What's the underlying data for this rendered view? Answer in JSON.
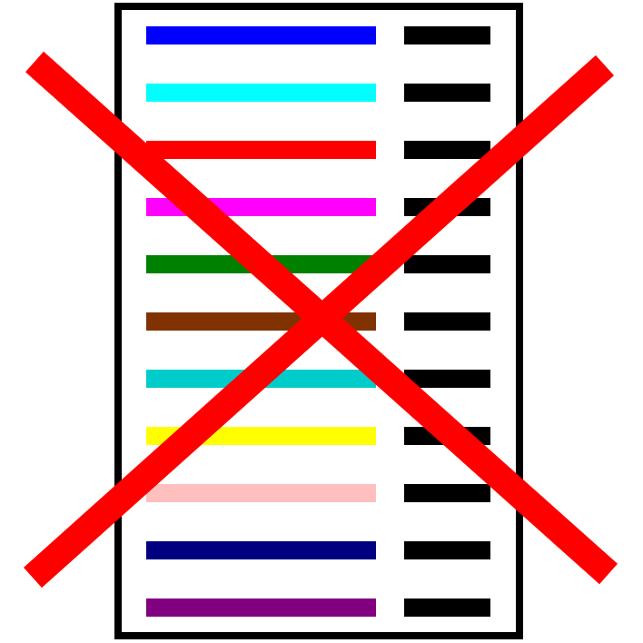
{
  "icon": {
    "name": "disabled-legend-icon",
    "frame_color": "#000000",
    "background_color": "#ffffff",
    "cross_color": "#ff0000",
    "rows": [
      {
        "swatch_color": "#0000ff",
        "marker_color": "#000000"
      },
      {
        "swatch_color": "#00ffff",
        "marker_color": "#000000"
      },
      {
        "swatch_color": "#ff0000",
        "marker_color": "#000000"
      },
      {
        "swatch_color": "#ff00ff",
        "marker_color": "#000000"
      },
      {
        "swatch_color": "#008000",
        "marker_color": "#000000"
      },
      {
        "swatch_color": "#803300",
        "marker_color": "#000000"
      },
      {
        "swatch_color": "#00cccc",
        "marker_color": "#000000"
      },
      {
        "swatch_color": "#ffff00",
        "marker_color": "#000000"
      },
      {
        "swatch_color": "#ffbfbf",
        "marker_color": "#000000"
      },
      {
        "swatch_color": "#000080",
        "marker_color": "#000000"
      },
      {
        "swatch_color": "#800080",
        "marker_color": "#000000"
      }
    ]
  }
}
